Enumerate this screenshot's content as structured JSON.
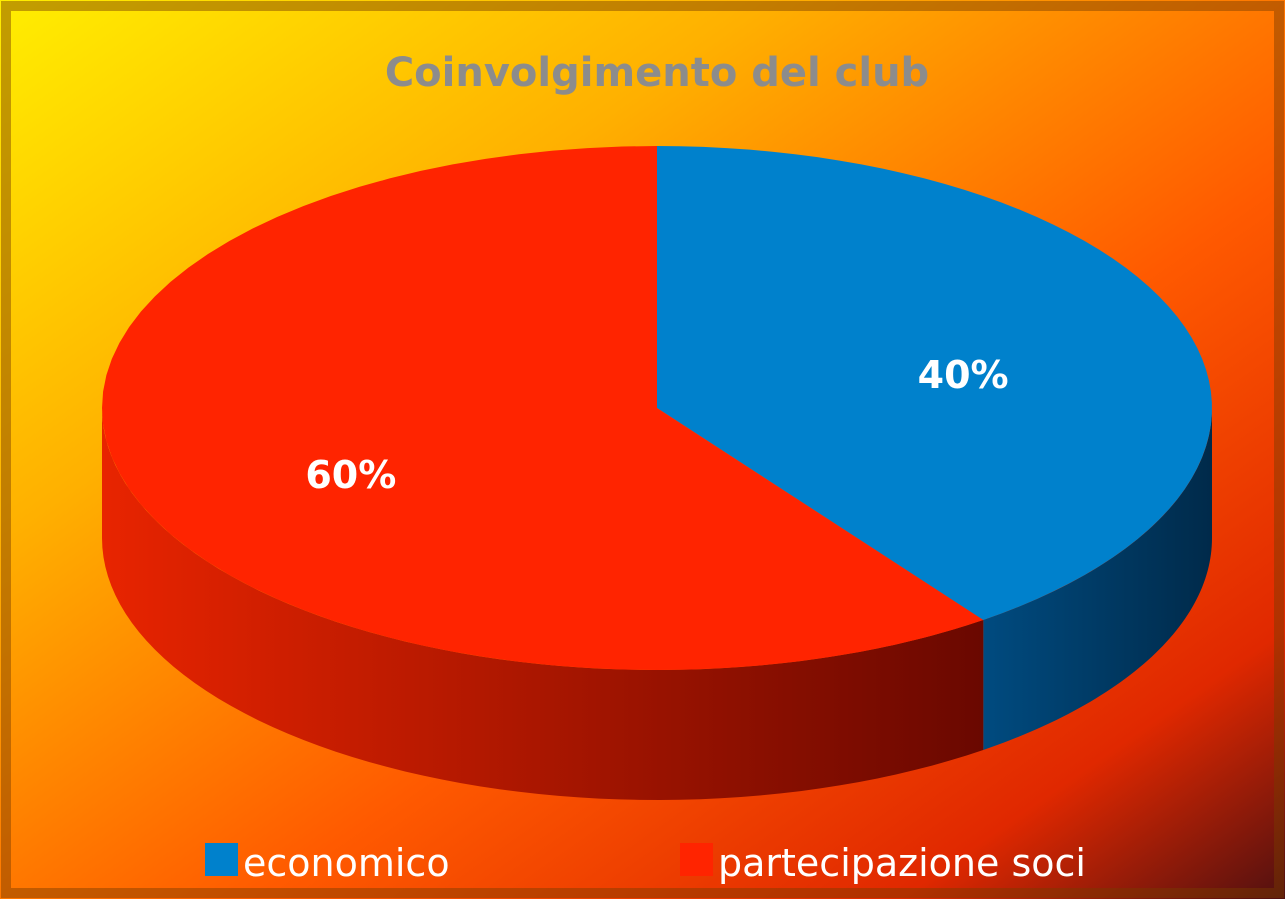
{
  "chart_data": {
    "type": "pie",
    "title": "Coinvolgimento del club",
    "categories": [
      "economico",
      "partecipazione soci"
    ],
    "values": [
      40,
      60
    ],
    "value_labels": [
      "40%",
      "60%"
    ],
    "colors": [
      "#0081cc",
      "#ff2400"
    ],
    "legend": "bottom"
  }
}
